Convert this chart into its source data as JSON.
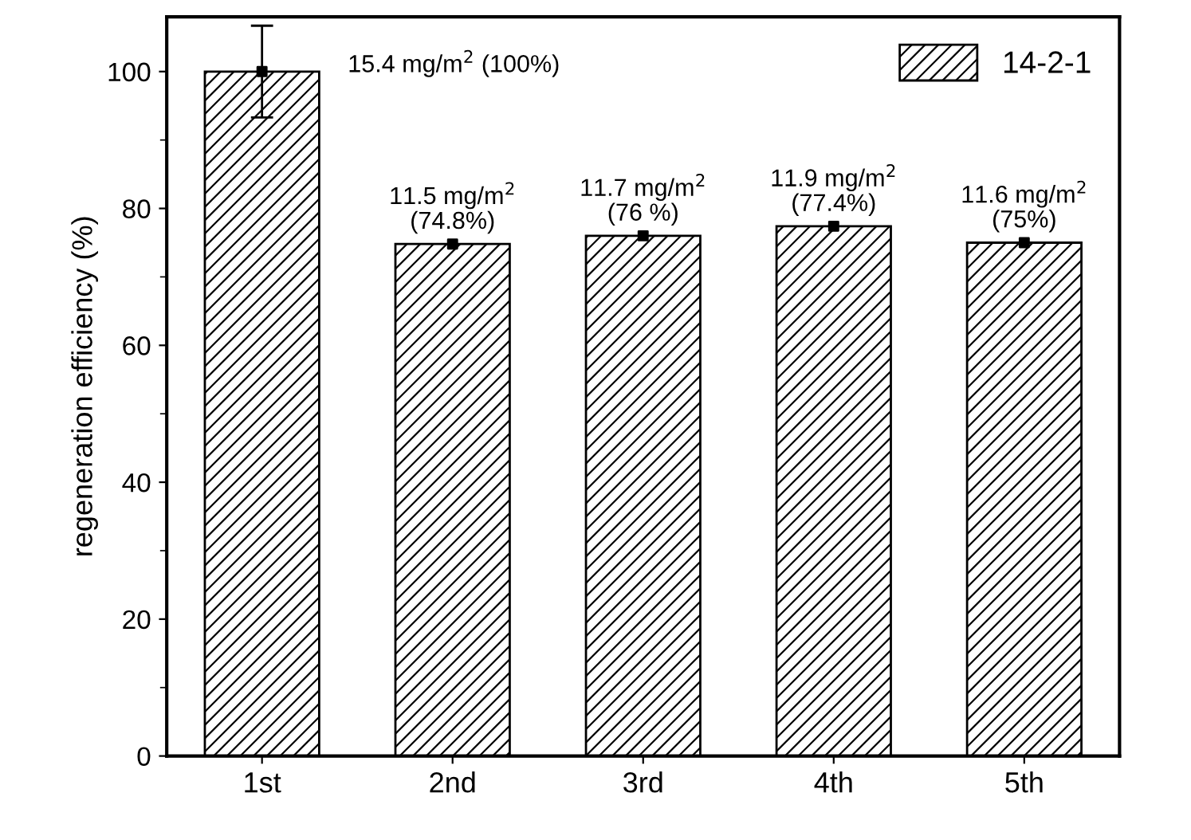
{
  "chart_data": {
    "type": "bar",
    "ylabel": "regeneration efficiency (%)",
    "categories": [
      "1st",
      "2nd",
      "3rd",
      "4th",
      "5th"
    ],
    "series": [
      {
        "name": "14-2-1",
        "color": "#000000",
        "values": [
          100,
          74.8,
          76,
          77.4,
          75
        ],
        "errors": [
          6.7,
          null,
          null,
          null,
          null
        ],
        "value_labels": [
          null,
          "11.5 mg/m$^{2}$\n(74.8%)",
          "11.7 mg/m$^{2}$\n(76 %)",
          "11.9 mg/m$^{2}$\n(77.4%)",
          "11.6 mg/m$^{2}$\n(75%)"
        ]
      },
      {
        "type": "scatter",
        "color": "#000000",
        "marker": "square",
        "x": [
          "1st",
          "2nd",
          "3rd",
          "4th",
          "5th"
        ],
        "values": [
          100,
          74.8,
          76,
          77.4,
          75
        ]
      }
    ],
    "annotations": [
      "15.4 mg/m$^{2}$ (100%)"
    ],
    "ylim": [
      0,
      108
    ],
    "yticks": [
      0,
      20,
      40,
      60,
      80,
      100
    ],
    "grid": false,
    "legend": "top right"
  }
}
